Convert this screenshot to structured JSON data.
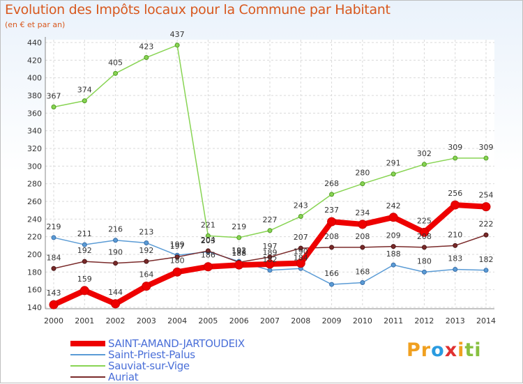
{
  "header": {
    "title": "Evolution des Impôts locaux pour la Commune par Habitant",
    "subtitle": "(en € et par an)"
  },
  "chart_data": {
    "type": "line",
    "title": "Evolution des Impôts locaux pour la Commune par Habitant",
    "subtitle": "(en € et par an)",
    "xlabel": "",
    "ylabel": "",
    "x": [
      "2000",
      "2001",
      "2002",
      "2003",
      "2004",
      "2005",
      "2006",
      "2007",
      "2008",
      "2009",
      "2010",
      "2011",
      "2012",
      "2013",
      "2014"
    ],
    "ylim": [
      140,
      440
    ],
    "yticks": [
      140,
      160,
      180,
      200,
      220,
      240,
      260,
      280,
      300,
      320,
      340,
      360,
      380,
      400,
      420,
      440
    ],
    "grid": true,
    "legend": "bottom-left",
    "series": [
      {
        "name": "SAINT-AMAND-JARTOUDEIX",
        "color": "#ee0000",
        "values": [
          143,
          159,
          144,
          164,
          180,
          186,
          188,
          189,
          190,
          237,
          234,
          242,
          225,
          256,
          254
        ]
      },
      {
        "name": "Saint-Priest-Palus",
        "color": "#5a9bd5",
        "values": [
          219,
          211,
          216,
          213,
          199,
          203,
          192,
          182,
          184,
          166,
          168,
          188,
          180,
          183,
          182
        ]
      },
      {
        "name": "Sauviat-sur-Vige",
        "color": "#88d453",
        "values": [
          367,
          374,
          405,
          423,
          437,
          221,
          219,
          227,
          243,
          268,
          280,
          291,
          302,
          309,
          309
        ]
      },
      {
        "name": "Auriat",
        "color": "#7a2a2a",
        "values": [
          184,
          192,
          190,
          192,
          197,
          204,
          191,
          197,
          207,
          208,
          208,
          209,
          208,
          210,
          222
        ]
      }
    ]
  },
  "legend": [
    {
      "label": "SAINT-AMAND-JARTOUDEIX",
      "color": "#ee0000"
    },
    {
      "label": "Saint-Priest-Palus",
      "color": "#5a9bd5"
    },
    {
      "label": "Sauviat-sur-Vige",
      "color": "#88d453"
    },
    {
      "label": "Auriat",
      "color": "#7a2a2a"
    }
  ],
  "logo": {
    "letters": [
      "P",
      "r",
      "o",
      "x",
      "i",
      "t",
      "i"
    ],
    "colors": [
      "#f0a020",
      "#f0a020",
      "#2a9be0",
      "#e03030",
      "#f0a020",
      "#88c040",
      "#88c040"
    ]
  }
}
